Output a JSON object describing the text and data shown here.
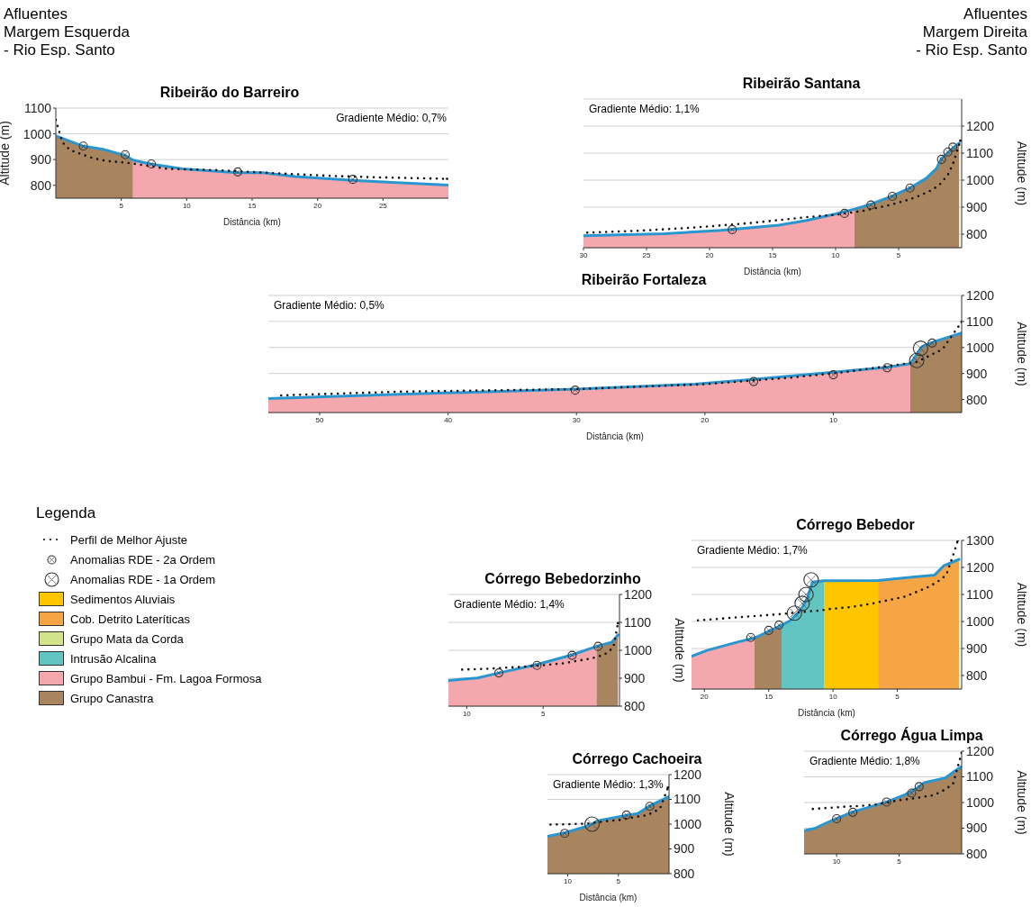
{
  "chart_data": [
    {
      "type": "other",
      "annotations": [
        "Afluentes\nMargem Esquerda\n- Rio Esp. Santo",
        "Afluentes\nMargem Direita\n- Rio Esp. Santo"
      ]
    },
    {
      "type": "area",
      "title": "Ribeirão do Barreiro",
      "xlabel": "Distância (km)",
      "ylabel": "Altitude (m)",
      "xlim": [
        0,
        30
      ],
      "xticks": [
        5,
        10,
        15,
        20,
        25
      ],
      "ylim": [
        750,
        1100
      ],
      "yticks": [
        800,
        900,
        1000,
        1100
      ],
      "grid": "y",
      "annotations": [
        "Gradiente Médio: 0,7%"
      ],
      "series": [
        {
          "type": "area",
          "color": "#a8845f",
          "x": [
            0,
            2.1,
            3.6,
            5.3,
            5.9
          ],
          "values": [
            992,
            952,
            940,
            916,
            898
          ]
        },
        {
          "type": "area",
          "color": "#f4a7ad",
          "x": [
            5.9,
            7.2,
            9.7,
            13.9,
            15.8,
            18.3,
            22.7,
            25.7,
            30
          ],
          "values": [
            898,
            883,
            864,
            849,
            849,
            834,
            819,
            811,
            801
          ]
        },
        {
          "type": "line",
          "color": "#2a96d0",
          "x": [
            0,
            2.1,
            3.6,
            5.3,
            5.9,
            7.2,
            9.7,
            13.9,
            15.8,
            18.3,
            22.7,
            25.7,
            30
          ],
          "values": [
            992,
            952,
            940,
            916,
            898,
            883,
            864,
            849,
            849,
            834,
            819,
            811,
            801
          ]
        },
        {
          "type": "line",
          "line_style": "dotted",
          "color": "#111111",
          "x": [
            0,
            0.5,
            1.1,
            2.8,
            3.8,
            5.7,
            8.5,
            12.2,
            17.1,
            20.8,
            24.4,
            29.9
          ],
          "values": [
            1054,
            967,
            936,
            906,
            895,
            886,
            864,
            859,
            846,
            837,
            831,
            825
          ]
        },
        {
          "type": "scatter",
          "color": "#333333",
          "x": [
            2.1,
            5.3,
            7.3,
            13.9,
            22.7
          ],
          "values": [
            952,
            919,
            883,
            852,
            823
          ]
        }
      ]
    },
    {
      "type": "area",
      "title": "Ribeirão Santana",
      "xlabel": "Distância (km)",
      "ylabel": "Altitude (m)",
      "xlim": [
        30,
        0
      ],
      "xticks": [
        30,
        25,
        20,
        15,
        10,
        5
      ],
      "ylim": [
        750,
        1300
      ],
      "yticks": [
        800,
        900,
        1000,
        1100,
        1200
      ],
      "grid": "y",
      "annotations": [
        "Gradiente Médio: 1,1%"
      ],
      "series": [
        {
          "type": "area",
          "color": "#f4a7ad",
          "x": [
            30,
            23.6,
            19.1,
            14.5,
            12.3,
            10,
            8.5
          ],
          "values": [
            794,
            802,
            814,
            833,
            851,
            875,
            893
          ]
        },
        {
          "type": "area",
          "color": "#a8845f",
          "x": [
            8.5,
            7.2,
            5.5,
            4.1,
            2.8,
            2,
            1.6,
            0.9,
            0.2
          ],
          "values": [
            893,
            911,
            941,
            971,
            1007,
            1043,
            1080,
            1110,
            1137
          ]
        },
        {
          "type": "line",
          "color": "#2a96d0",
          "x": [
            30,
            23.6,
            19.1,
            14.5,
            12.3,
            10,
            8.5,
            7.2,
            5.5,
            4.1,
            2.8,
            2,
            1.6,
            0.9,
            0.2
          ],
          "values": [
            794,
            802,
            814,
            833,
            851,
            875,
            893,
            911,
            941,
            971,
            1007,
            1043,
            1080,
            1110,
            1137
          ]
        },
        {
          "type": "line",
          "line_style": "dotted",
          "color": "#111111",
          "x": [
            29.7,
            25.9,
            21.4,
            16.8,
            12.3,
            10,
            7.7,
            6.6,
            5.7,
            4.1,
            3.2,
            2.3,
            1.7,
            1.1,
            0.7,
            0.1
          ],
          "values": [
            806,
            812,
            824,
            841,
            863,
            872,
            887,
            899,
            908,
            929,
            945,
            965,
            986,
            1019,
            1058,
            1146
          ]
        },
        {
          "type": "scatter",
          "color": "#333333",
          "x": [
            18.2,
            9.3,
            7.2,
            5.5,
            4.1,
            1.6,
            1.1,
            0.7
          ],
          "values": [
            817,
            877,
            908,
            940,
            971,
            1077,
            1104,
            1122
          ]
        }
      ]
    },
    {
      "type": "area",
      "title": "Ribeirão Fortaleza",
      "xlabel": "Distância (km)",
      "ylabel": "Altitude (m)",
      "xlim": [
        54,
        0
      ],
      "xticks": [
        50,
        40,
        30,
        20,
        10
      ],
      "ylim": [
        750,
        1200
      ],
      "yticks": [
        800,
        900,
        1000,
        1100,
        1200
      ],
      "grid": "y",
      "annotations": [
        "Gradiente Médio: 0,5%"
      ],
      "series": [
        {
          "type": "area",
          "color": "#f4a7ad",
          "x": [
            54,
            43.8,
            30,
            20.8,
            16.9,
            10,
            5.8,
            4
          ],
          "values": [
            804,
            820,
            840,
            859,
            875,
            905,
            924,
            938
          ]
        },
        {
          "type": "area",
          "color": "#a8845f",
          "x": [
            4,
            3.5,
            3.1,
            2.1,
            0
          ],
          "values": [
            938,
            974,
            1003,
            1023,
            1056
          ]
        },
        {
          "type": "line",
          "color": "#2a96d0",
          "x": [
            54,
            43.8,
            30,
            20.8,
            16.9,
            10,
            5.8,
            4,
            3.5,
            3.1,
            2.1,
            0
          ],
          "values": [
            804,
            820,
            840,
            859,
            875,
            905,
            924,
            938,
            974,
            1003,
            1023,
            1056
          ]
        },
        {
          "type": "line",
          "line_style": "dotted",
          "color": "#111111",
          "x": [
            53,
            43.8,
            30,
            20,
            13.1,
            9.2,
            5.8,
            3.5,
            1.5,
            0
          ],
          "values": [
            816,
            830,
            840,
            859,
            885,
            905,
            928,
            944,
            993,
            1098
          ]
        },
        {
          "type": "scatter",
          "color": "#333333",
          "x": [
            30.1,
            16.2,
            10,
            5.8,
            2.3
          ],
          "values": [
            836,
            869,
            895,
            922,
            1017
          ]
        },
        {
          "type": "scatter",
          "color": "#333333",
          "x": [
            3.5,
            3.2
          ],
          "values": [
            950,
            997
          ]
        }
      ]
    },
    {
      "type": "other",
      "title": "Legenda",
      "categories": [
        "Perfil de Melhor Ajuste",
        "Anomalias RDE - 2a Ordem",
        "Anomalias RDE - 1a Ordem",
        "Sedimentos Aluviais",
        "Cob. Detrito Lateríticas",
        "Grupo Mata da Corda",
        "Intrusão Alcalina",
        "Grupo Bambui - Fm. Lagoa Formosa",
        "Grupo Canastra"
      ],
      "colors": [
        "#111111",
        "#333333",
        "#333333",
        "#ffc600",
        "#f6a544",
        "#d2e38c",
        "#63c5c1",
        "#f4a7ad",
        "#a8845f"
      ]
    },
    {
      "type": "area",
      "title": "Córrego Bebedor",
      "xlabel": "Distância (km)",
      "ylabel": "Altitude (m)",
      "xlim": [
        21,
        0
      ],
      "xticks": [
        20,
        15,
        10,
        5
      ],
      "ylim": [
        750,
        1300
      ],
      "yticks": [
        800,
        900,
        1000,
        1100,
        1200,
        1300
      ],
      "grid": "y",
      "annotations": [
        "Gradiente Médio: 1,7%"
      ],
      "series": [
        {
          "type": "area",
          "color": "#f4a7ad",
          "x": [
            21,
            19.8,
            17.5,
            16.1
          ],
          "values": [
            871,
            893,
            923,
            939
          ]
        },
        {
          "type": "area",
          "color": "#a8845f",
          "x": [
            16.1,
            14
          ],
          "values": [
            939,
            986
          ]
        },
        {
          "type": "area",
          "color": "#63c5c1",
          "x": [
            14,
            13.3,
            12.5,
            12,
            11.6,
            10.7
          ],
          "values": [
            986,
            1004,
            1043,
            1086,
            1146,
            1151
          ]
        },
        {
          "type": "area",
          "color": "#ffc600",
          "x": [
            10.7,
            6.5
          ],
          "values": [
            1151,
            1152
          ]
        },
        {
          "type": "area",
          "color": "#f6a544",
          "x": [
            6.5,
            2.1,
            1.4,
            0.2
          ],
          "values": [
            1152,
            1172,
            1206,
            1230
          ]
        },
        {
          "type": "line",
          "color": "#2a96d0",
          "x": [
            21,
            19.8,
            17.5,
            16.1,
            14,
            13.3,
            12.5,
            12,
            11.6,
            10.7,
            6.5,
            2.1,
            1.4,
            0.2
          ],
          "values": [
            871,
            893,
            923,
            939,
            986,
            1004,
            1043,
            1086,
            1146,
            1151,
            1152,
            1172,
            1206,
            1230
          ]
        },
        {
          "type": "line",
          "line_style": "dotted",
          "color": "#111111",
          "x": [
            20.5,
            18.6,
            16.4,
            13.9,
            12,
            11.1,
            10.3,
            8.5,
            6.9,
            6,
            4.4,
            2.7,
            1.9,
            1.2,
            0.6,
            0.3
          ],
          "values": [
            1004,
            1011,
            1019,
            1028,
            1037,
            1040,
            1046,
            1054,
            1067,
            1076,
            1092,
            1125,
            1146,
            1172,
            1254,
            1300
          ]
        },
        {
          "type": "scatter",
          "color": "#333333",
          "x": [
            16.4,
            15,
            14.2
          ],
          "values": [
            941,
            967,
            987
          ]
        },
        {
          "type": "scatter",
          "color": "#333333",
          "x": [
            13,
            12.4,
            12.1,
            11.7
          ],
          "values": [
            1031,
            1067,
            1100,
            1154
          ]
        }
      ]
    },
    {
      "type": "area",
      "title": "Córrego Bebedorzinho",
      "ylabel": "Altitude (m)",
      "xlim": [
        11.2,
        0
      ],
      "xticks": [
        10,
        5
      ],
      "ylim": [
        800,
        1200
      ],
      "yticks": [
        800,
        900,
        1000,
        1100,
        1200
      ],
      "grid": "y",
      "annotations": [
        "Gradiente Médio: 1,4%"
      ],
      "series": [
        {
          "type": "area",
          "color": "#f4a7ad",
          "x": [
            11.2,
            9.3,
            7.9,
            5.4,
            3.1,
            1.5
          ],
          "values": [
            892,
            901,
            919,
            949,
            984,
            1014
          ]
        },
        {
          "type": "area",
          "color": "#a8845f",
          "x": [
            1.5,
            0.5,
            0.1
          ],
          "values": [
            1014,
            1029,
            1055
          ]
        },
        {
          "type": "line",
          "color": "#2a96d0",
          "x": [
            11.2,
            9.3,
            7.9,
            5.4,
            3.1,
            1.5,
            0.5,
            0.1
          ],
          "values": [
            892,
            901,
            919,
            949,
            984,
            1014,
            1029,
            1055
          ]
        },
        {
          "type": "line",
          "line_style": "dotted",
          "color": "#111111",
          "x": [
            10.3,
            8.6,
            7,
            5.3,
            3.6,
            2.7,
            1.9,
            1,
            0.4,
            0.1
          ],
          "values": [
            931,
            934,
            939,
            945,
            954,
            963,
            970,
            984,
            1010,
            1097
          ]
        },
        {
          "type": "scatter",
          "color": "#333333",
          "x": [
            7.9,
            5.4,
            3.1,
            1.4
          ],
          "values": [
            919,
            946,
            982,
            1014
          ]
        }
      ]
    },
    {
      "type": "area",
      "title": "Córrego Cachoeira",
      "xlabel": "Distância (km)",
      "ylabel": "Altitude (m)",
      "xlim": [
        12,
        0
      ],
      "xticks": [
        10,
        5
      ],
      "ylim": [
        800,
        1200
      ],
      "yticks": [
        800,
        900,
        1000,
        1100,
        1200
      ],
      "grid": "y",
      "annotations": [
        "Gradiente Médio: 1,3%"
      ],
      "series": [
        {
          "type": "area",
          "color": "#a8845f",
          "x": [
            12,
            10.3,
            8.4,
            7.5,
            6.9,
            4.3,
            3.1,
            1.9,
            0
          ],
          "values": [
            951,
            965,
            988,
            1002,
            1015,
            1035,
            1043,
            1074,
            1111
          ]
        },
        {
          "type": "line",
          "color": "#2a96d0",
          "x": [
            12,
            10.3,
            8.4,
            7.5,
            6.9,
            4.3,
            3.1,
            1.9,
            0
          ],
          "values": [
            951,
            965,
            988,
            1002,
            1015,
            1035,
            1043,
            1074,
            1111
          ]
        },
        {
          "type": "line",
          "line_style": "dotted",
          "color": "#111111",
          "x": [
            11.7,
            9.8,
            8.1,
            6.2,
            4.8,
            3.6,
            2.1,
            0.9,
            0.1
          ],
          "values": [
            998,
            1000,
            1002,
            1012,
            1017,
            1027,
            1037,
            1062,
            1148
          ]
        },
        {
          "type": "scatter",
          "color": "#333333",
          "x": [
            10.3,
            4.2,
            1.9
          ],
          "values": [
            963,
            1037,
            1072
          ]
        },
        {
          "type": "scatter",
          "color": "#333333",
          "x": [
            7.6
          ],
          "values": [
            1000
          ]
        }
      ]
    },
    {
      "type": "area",
      "title": "Córrego Água Limpa",
      "ylabel": "Altitude (m)",
      "xlim": [
        12.6,
        0
      ],
      "xticks": [
        10,
        5
      ],
      "ylim": [
        800,
        1200
      ],
      "yticks": [
        800,
        900,
        1000,
        1100,
        1200
      ],
      "grid": "y",
      "annotations": [
        "Gradiente Médio: 1,8%"
      ],
      "series": [
        {
          "type": "area",
          "color": "#a8845f",
          "x": [
            12.6,
            11.7,
            10.8,
            10,
            8.8,
            6,
            4.5,
            3.5,
            3,
            1.3,
            0.6,
            0
          ],
          "values": [
            890,
            900,
            921,
            937,
            962,
            1002,
            1031,
            1059,
            1077,
            1096,
            1121,
            1140
          ]
        },
        {
          "type": "line",
          "color": "#2a96d0",
          "x": [
            12.6,
            11.7,
            10.8,
            10,
            8.8,
            6,
            4.5,
            3.5,
            3,
            1.3,
            0.6,
            0
          ],
          "values": [
            890,
            900,
            921,
            937,
            962,
            1002,
            1031,
            1059,
            1077,
            1096,
            1121,
            1140
          ]
        },
        {
          "type": "line",
          "line_style": "dotted",
          "color": "#111111",
          "x": [
            11.9,
            11,
            10.1,
            9.3,
            8.3,
            6.9,
            5,
            4,
            2.3,
            1.6,
            0.7,
            0
          ],
          "values": [
            975,
            978,
            981,
            984,
            986,
            992,
            1009,
            1015,
            1028,
            1043,
            1071,
            1193
          ]
        },
        {
          "type": "scatter",
          "color": "#333333",
          "x": [
            10,
            8.7,
            6,
            4,
            3.4
          ],
          "values": [
            937,
            962,
            1002,
            1037,
            1062
          ]
        }
      ]
    }
  ]
}
